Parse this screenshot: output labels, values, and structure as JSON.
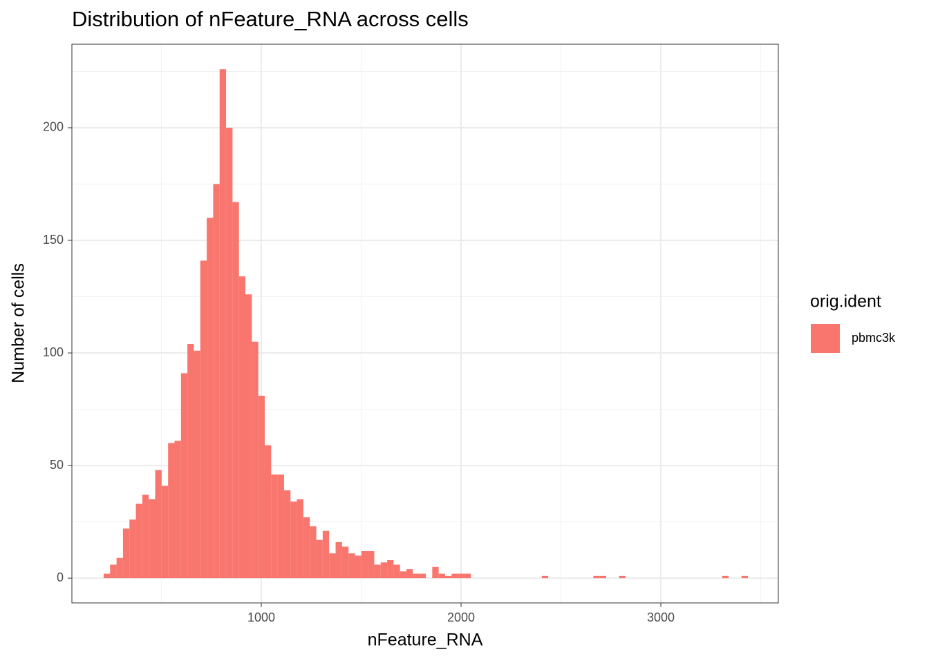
{
  "chart_data": {
    "type": "histogram",
    "title": "Distribution of nFeature_RNA across cells",
    "x_label": "nFeature_RNA",
    "y_label": "Number of cells",
    "legend_title": "orig.ident",
    "bins": [
      211,
      243.25,
      275.5,
      307.75,
      340,
      372.25,
      404.5,
      436.75,
      469,
      501.25,
      533.5,
      565.75,
      598,
      630.25,
      662.5,
      694.75,
      727,
      759.25,
      791.5,
      823.75,
      856,
      888.25,
      920.5,
      952.75,
      985,
      1017.25,
      1049.5,
      1081.75,
      1114,
      1146.25,
      1178.5,
      1210.75,
      1243,
      1275.25,
      1307.5,
      1339.75,
      1372,
      1404.25,
      1436.5,
      1468.75,
      1501,
      1533.25,
      1565.5,
      1597.75,
      1630,
      1662.25,
      1694.5,
      1726.75,
      1759,
      1791.25,
      1823.5,
      1855.75,
      1888,
      1920.25,
      1952.5,
      1984.75,
      2017,
      2049.25,
      2081.5,
      2113.75,
      2146,
      2178.25,
      2210.5,
      2242.75,
      2275,
      2307.25,
      2339.5,
      2371.75,
      2404,
      2436.25,
      2468.5,
      2500.75,
      2533,
      2565.25,
      2597.5,
      2629.75,
      2662,
      2694.25,
      2726.5,
      2758.75,
      2791,
      2823.25,
      2855.5,
      2887.75,
      2920,
      2952.25,
      2984.5,
      3016.75,
      3049,
      3081.25,
      3113.5,
      3145.75,
      3178,
      3210.25,
      3242.5,
      3274.75,
      3307,
      3339.25,
      3371.5,
      3403.75,
      3436
    ],
    "series": [
      {
        "name": "pbmc3k",
        "color": "#F8766D",
        "values": [
          2,
          6,
          9,
          22,
          26,
          33,
          37,
          35,
          48,
          41,
          60,
          61,
          91,
          104,
          101,
          141,
          160,
          175,
          226,
          200,
          167,
          134,
          126,
          105,
          81,
          59,
          46,
          46,
          39,
          34,
          35,
          27,
          23,
          17,
          21,
          11,
          16,
          14,
          11,
          10,
          12,
          12,
          6,
          7,
          8,
          6,
          3,
          4,
          2,
          2,
          0,
          5,
          2,
          1,
          2,
          2,
          2,
          0,
          0,
          0,
          0,
          0,
          0,
          0,
          0,
          0,
          0,
          0,
          1,
          0,
          0,
          0,
          0,
          0,
          0,
          0,
          1,
          1,
          0,
          0,
          1,
          0,
          0,
          0,
          0,
          0,
          0,
          0,
          0,
          0,
          0,
          0,
          0,
          0,
          0,
          0,
          1,
          0,
          0,
          1
        ]
      }
    ],
    "xlim": [
      52,
      3588
    ],
    "ylim": [
      -11,
      237.1
    ],
    "xticks": [
      1000,
      2000,
      3000
    ],
    "yticks": [
      0,
      50,
      100,
      150,
      200
    ],
    "x_minor_grid": [
      500,
      1500,
      2500,
      3500
    ],
    "y_minor_grid": [
      25,
      75,
      125,
      175,
      225
    ],
    "grid": true
  }
}
